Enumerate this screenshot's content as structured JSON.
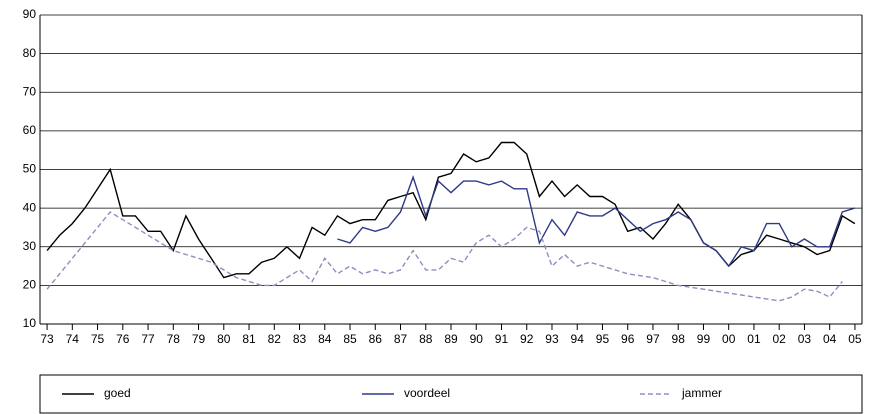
{
  "chart_data": {
    "type": "line",
    "x": [
      1973,
      1973.5,
      1974,
      1974.5,
      1975,
      1975.5,
      1976,
      1976.5,
      1977,
      1977.5,
      1978,
      1978.5,
      1979,
      1979.5,
      1980,
      1980.5,
      1981,
      1981.5,
      1982,
      1982.5,
      1983,
      1983.5,
      1984,
      1984.5,
      1985,
      1985.5,
      1986,
      1986.5,
      1987,
      1987.5,
      1988,
      1988.5,
      1989,
      1989.5,
      1990,
      1990.5,
      1991,
      1991.5,
      1992,
      1992.5,
      1993,
      1993.5,
      1994,
      1994.5,
      1995,
      1995.5,
      1996,
      1996.5,
      1997,
      1997.5,
      1998,
      1998.5,
      1999,
      1999.5,
      2000,
      2000.5,
      2001,
      2001.5,
      2002,
      2002.5,
      2003,
      2003.5,
      2004,
      2004.5,
      2005
    ],
    "series": [
      {
        "name": "goed",
        "color": "#000000",
        "dash": false,
        "values": [
          29,
          33,
          36,
          40,
          45,
          50,
          38,
          38,
          34,
          34,
          29,
          38,
          32,
          27,
          22,
          23,
          23,
          26,
          27,
          30,
          27,
          35,
          33,
          38,
          36,
          37,
          37,
          42,
          43,
          44,
          37,
          48,
          49,
          54,
          52,
          53,
          57,
          57,
          54,
          43,
          47,
          43,
          46,
          43,
          43,
          41,
          34,
          35,
          32,
          36,
          41,
          37,
          31,
          29,
          25,
          28,
          29,
          33,
          32,
          31,
          30,
          28,
          29,
          38,
          36
        ]
      },
      {
        "name": "voordeel",
        "color": "#2e3a87",
        "dash": false,
        "values": [
          null,
          null,
          null,
          null,
          null,
          null,
          null,
          null,
          null,
          null,
          null,
          null,
          null,
          null,
          null,
          null,
          null,
          null,
          null,
          null,
          null,
          null,
          null,
          32,
          31,
          35,
          34,
          35,
          39,
          48,
          38,
          47,
          44,
          47,
          47,
          46,
          47,
          45,
          45,
          31,
          37,
          33,
          39,
          38,
          38,
          40,
          37,
          34,
          36,
          37,
          39,
          37,
          31,
          29,
          25,
          30,
          29,
          36,
          36,
          30,
          32,
          30,
          30,
          39,
          40
        ]
      },
      {
        "name": "jammer",
        "color": "#8e8fbf",
        "dash": true,
        "values": [
          19,
          23,
          27,
          31,
          35,
          39,
          37,
          35,
          33,
          31,
          29,
          28,
          27,
          26,
          24,
          22,
          21,
          20,
          20,
          22,
          24,
          21,
          27,
          23,
          25,
          23,
          24,
          23,
          24,
          29,
          24,
          24,
          27,
          26,
          31,
          33,
          30,
          32,
          35,
          34,
          25,
          28,
          25,
          26,
          25,
          24,
          23,
          22.5,
          22,
          21,
          20,
          19.5,
          19,
          18.5,
          18,
          17.5,
          17,
          16.5,
          16,
          17,
          19,
          18.5,
          17,
          21,
          null
        ]
      }
    ],
    "xlim": [
      1972.72,
      2005.28
    ],
    "xticks": [
      {
        "value": 1973,
        "label": "73"
      },
      {
        "value": 1974,
        "label": "74"
      },
      {
        "value": 1975,
        "label": "75"
      },
      {
        "value": 1976,
        "label": "76"
      },
      {
        "value": 1977,
        "label": "77"
      },
      {
        "value": 1978,
        "label": "78"
      },
      {
        "value": 1979,
        "label": "79"
      },
      {
        "value": 1980,
        "label": "80"
      },
      {
        "value": 1981,
        "label": "81"
      },
      {
        "value": 1982,
        "label": "82"
      },
      {
        "value": 1983,
        "label": "83"
      },
      {
        "value": 1984,
        "label": "84"
      },
      {
        "value": 1985,
        "label": "85"
      },
      {
        "value": 1986,
        "label": "86"
      },
      {
        "value": 1987,
        "label": "87"
      },
      {
        "value": 1988,
        "label": "88"
      },
      {
        "value": 1989,
        "label": "89"
      },
      {
        "value": 1990,
        "label": "90"
      },
      {
        "value": 1991,
        "label": "91"
      },
      {
        "value": 1992,
        "label": "92"
      },
      {
        "value": 1993,
        "label": "93"
      },
      {
        "value": 1994,
        "label": "94"
      },
      {
        "value": 1995,
        "label": "95"
      },
      {
        "value": 1996,
        "label": "96"
      },
      {
        "value": 1997,
        "label": "97"
      },
      {
        "value": 1998,
        "label": "98"
      },
      {
        "value": 1999,
        "label": "99"
      },
      {
        "value": 2000,
        "label": "00"
      },
      {
        "value": 2001,
        "label": "01"
      },
      {
        "value": 2002,
        "label": "02"
      },
      {
        "value": 2003,
        "label": "03"
      },
      {
        "value": 2004,
        "label": "04"
      },
      {
        "value": 2005,
        "label": "05"
      }
    ],
    "ylim": [
      10,
      90
    ],
    "yticks": [
      10,
      20,
      30,
      40,
      50,
      60,
      70,
      80,
      90
    ],
    "grid": true,
    "legend": "bottom"
  }
}
